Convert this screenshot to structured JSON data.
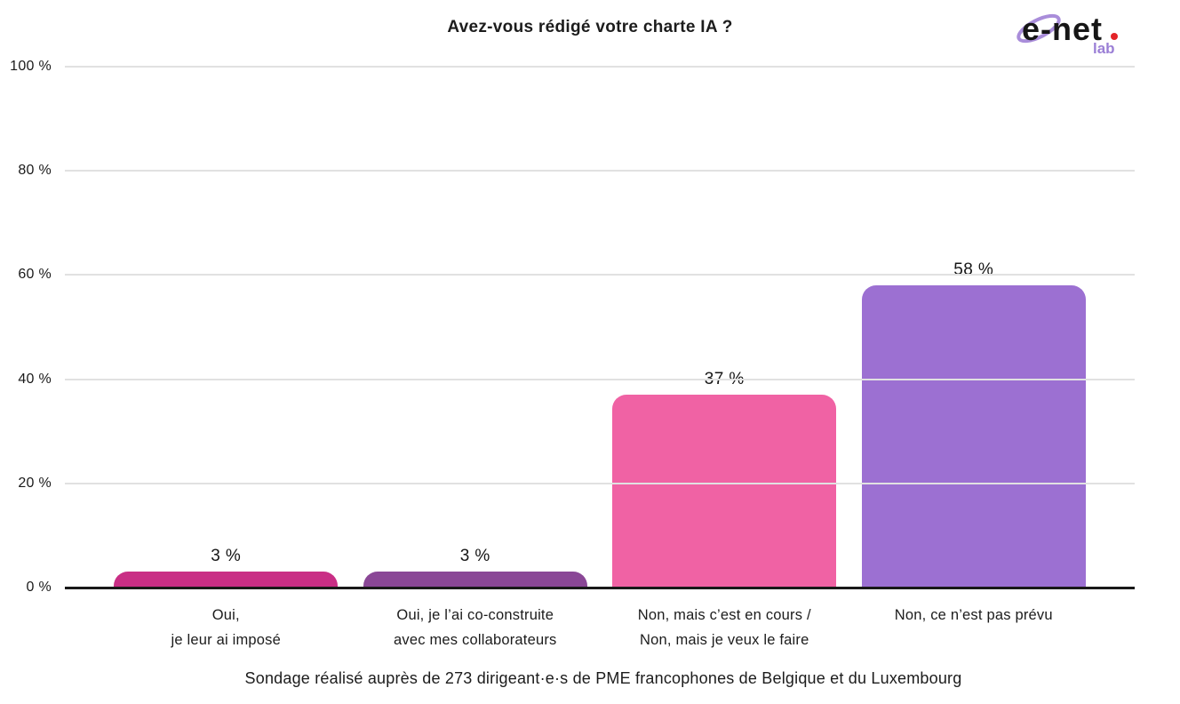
{
  "header": {
    "title": "Avez-vous rédigé votre charte IA ?"
  },
  "logo": {
    "brand": "e-net",
    "sub": "lab",
    "brand_color": "#161616",
    "dot_color": "#e32428",
    "sub_color": "#9b7fd6",
    "ring_color": "#a98dda"
  },
  "chart_data": {
    "type": "bar",
    "title": "Avez-vous rédigé votre charte IA ?",
    "categories": [
      [
        "Oui,",
        "je leur ai imposé"
      ],
      [
        "Oui, je l’ai co-construite",
        "avec mes collaborateurs"
      ],
      [
        "Non, mais c’est en cours /",
        "Non, mais je veux le faire"
      ],
      [
        "Non, ce n’est pas prévu"
      ]
    ],
    "values": [
      3,
      3,
      37,
      58
    ],
    "value_labels": [
      "3 %",
      "3 %",
      "37 %",
      "58 %"
    ],
    "bar_colors": [
      "#c92e85",
      "#8a4796",
      "#f062a4",
      "#9c70d2"
    ],
    "xlabel": "",
    "ylabel": "",
    "ylim": [
      0,
      100
    ],
    "yticks": [
      0,
      20,
      40,
      60,
      80,
      100
    ],
    "ytick_labels": [
      "0 %",
      "20 %",
      "40 %",
      "60 %",
      "80 %",
      "100 %"
    ],
    "grid": true,
    "gridline_color": "#e1e1e1",
    "axis_color": "#191919",
    "legend": false
  },
  "footer": {
    "caption": "Sondage réalisé auprès de 273 dirigeant·e·s de PME francophones de Belgique et du Luxembourg"
  }
}
